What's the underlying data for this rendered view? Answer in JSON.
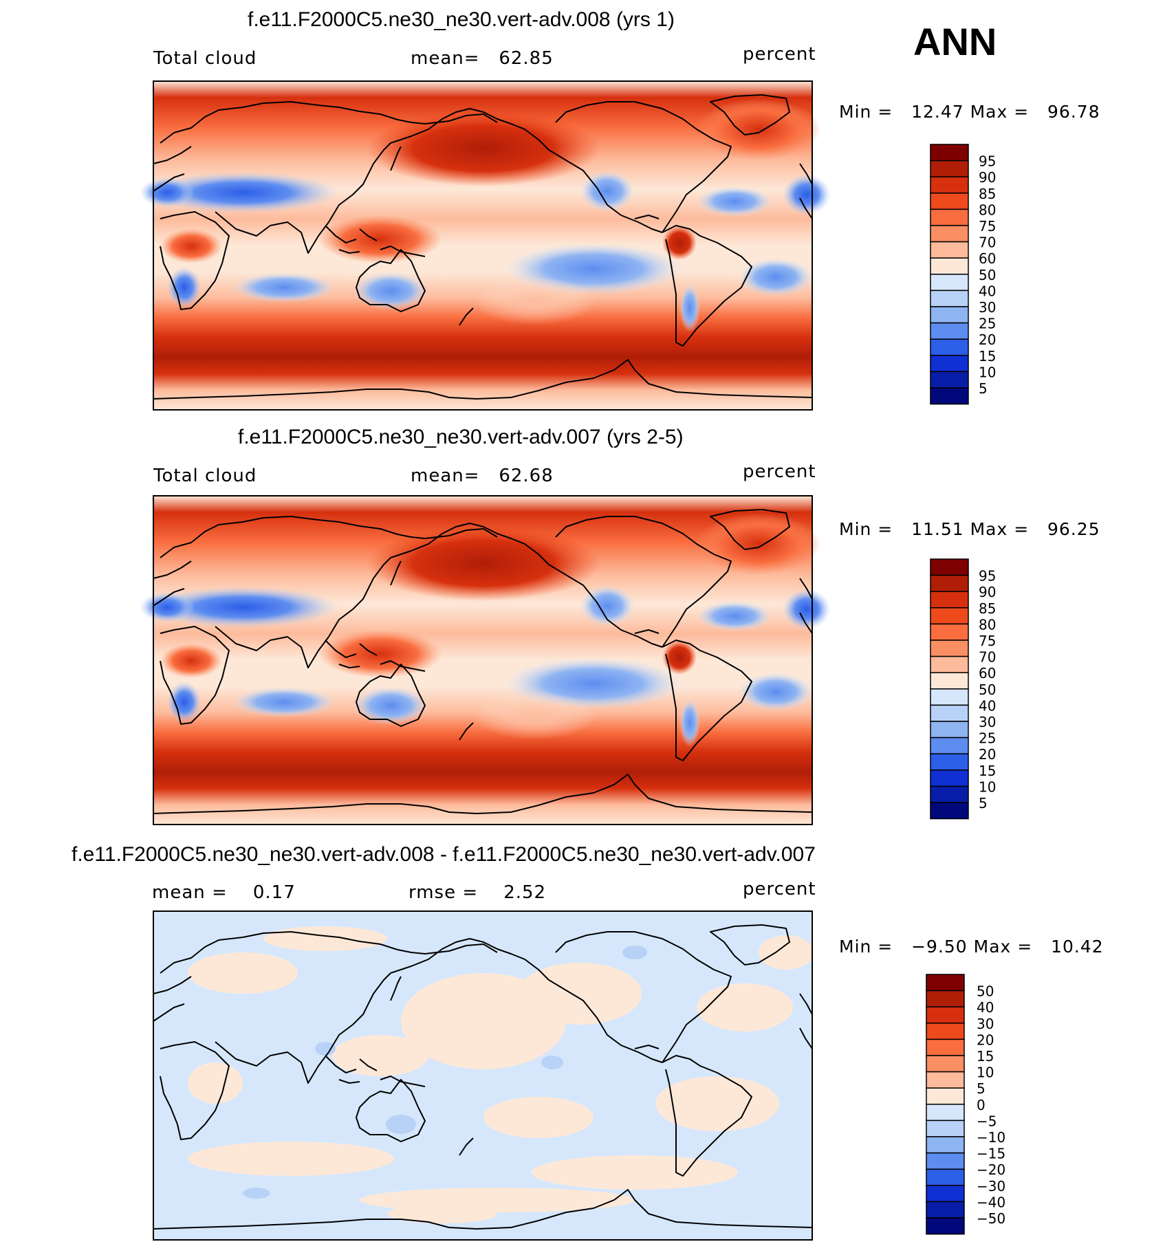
{
  "season": "ANN",
  "panels": [
    {
      "title": "f.e11.F2000C5.ne30_ne30.vert-adv.008 (yrs 1)",
      "left_label": "Total cloud",
      "center_label": "mean=   62.85",
      "right_label": "percent",
      "minmax": "Min =   12.47 Max =   96.78",
      "colorbar_labels": [
        "95",
        "90",
        "85",
        "80",
        "75",
        "70",
        "60",
        "50",
        "40",
        "30",
        "25",
        "20",
        "15",
        "10",
        "5"
      ]
    },
    {
      "title": "f.e11.F2000C5.ne30_ne30.vert-adv.007 (yrs 2-5)",
      "left_label": "Total cloud",
      "center_label": "mean=   62.68",
      "right_label": "percent",
      "minmax": "Min =   11.51 Max =   96.25",
      "colorbar_labels": [
        "95",
        "90",
        "85",
        "80",
        "75",
        "70",
        "60",
        "50",
        "40",
        "30",
        "25",
        "20",
        "15",
        "10",
        "5"
      ]
    },
    {
      "title": "f.e11.F2000C5.ne30_ne30.vert-adv.008 - f.e11.F2000C5.ne30_ne30.vert-adv.007",
      "left_label": "mean =    0.17",
      "center_label": "rmse =    2.52",
      "right_label": "percent",
      "minmax": "Min =   −9.50 Max =   10.42",
      "colorbar_labels": [
        "50",
        "40",
        "30",
        "20",
        "15",
        "10",
        "5",
        "0",
        "−5",
        "−10",
        "−15",
        "−20",
        "−30",
        "−40",
        "−50"
      ]
    }
  ],
  "colors": {
    "palette": [
      "#7f0000",
      "#b01e08",
      "#d6300e",
      "#ee4a1c",
      "#f96d3f",
      "#fb8f64",
      "#fdbb9c",
      "#fde8d8",
      "#d6e7fb",
      "#b8d2f7",
      "#8fb4f2",
      "#5e8df0",
      "#2c5ee8",
      "#1030d4",
      "#081ea8",
      "#00087c"
    ],
    "ocean_diff": "#d6e7fb",
    "land_outline": "#000000"
  }
}
